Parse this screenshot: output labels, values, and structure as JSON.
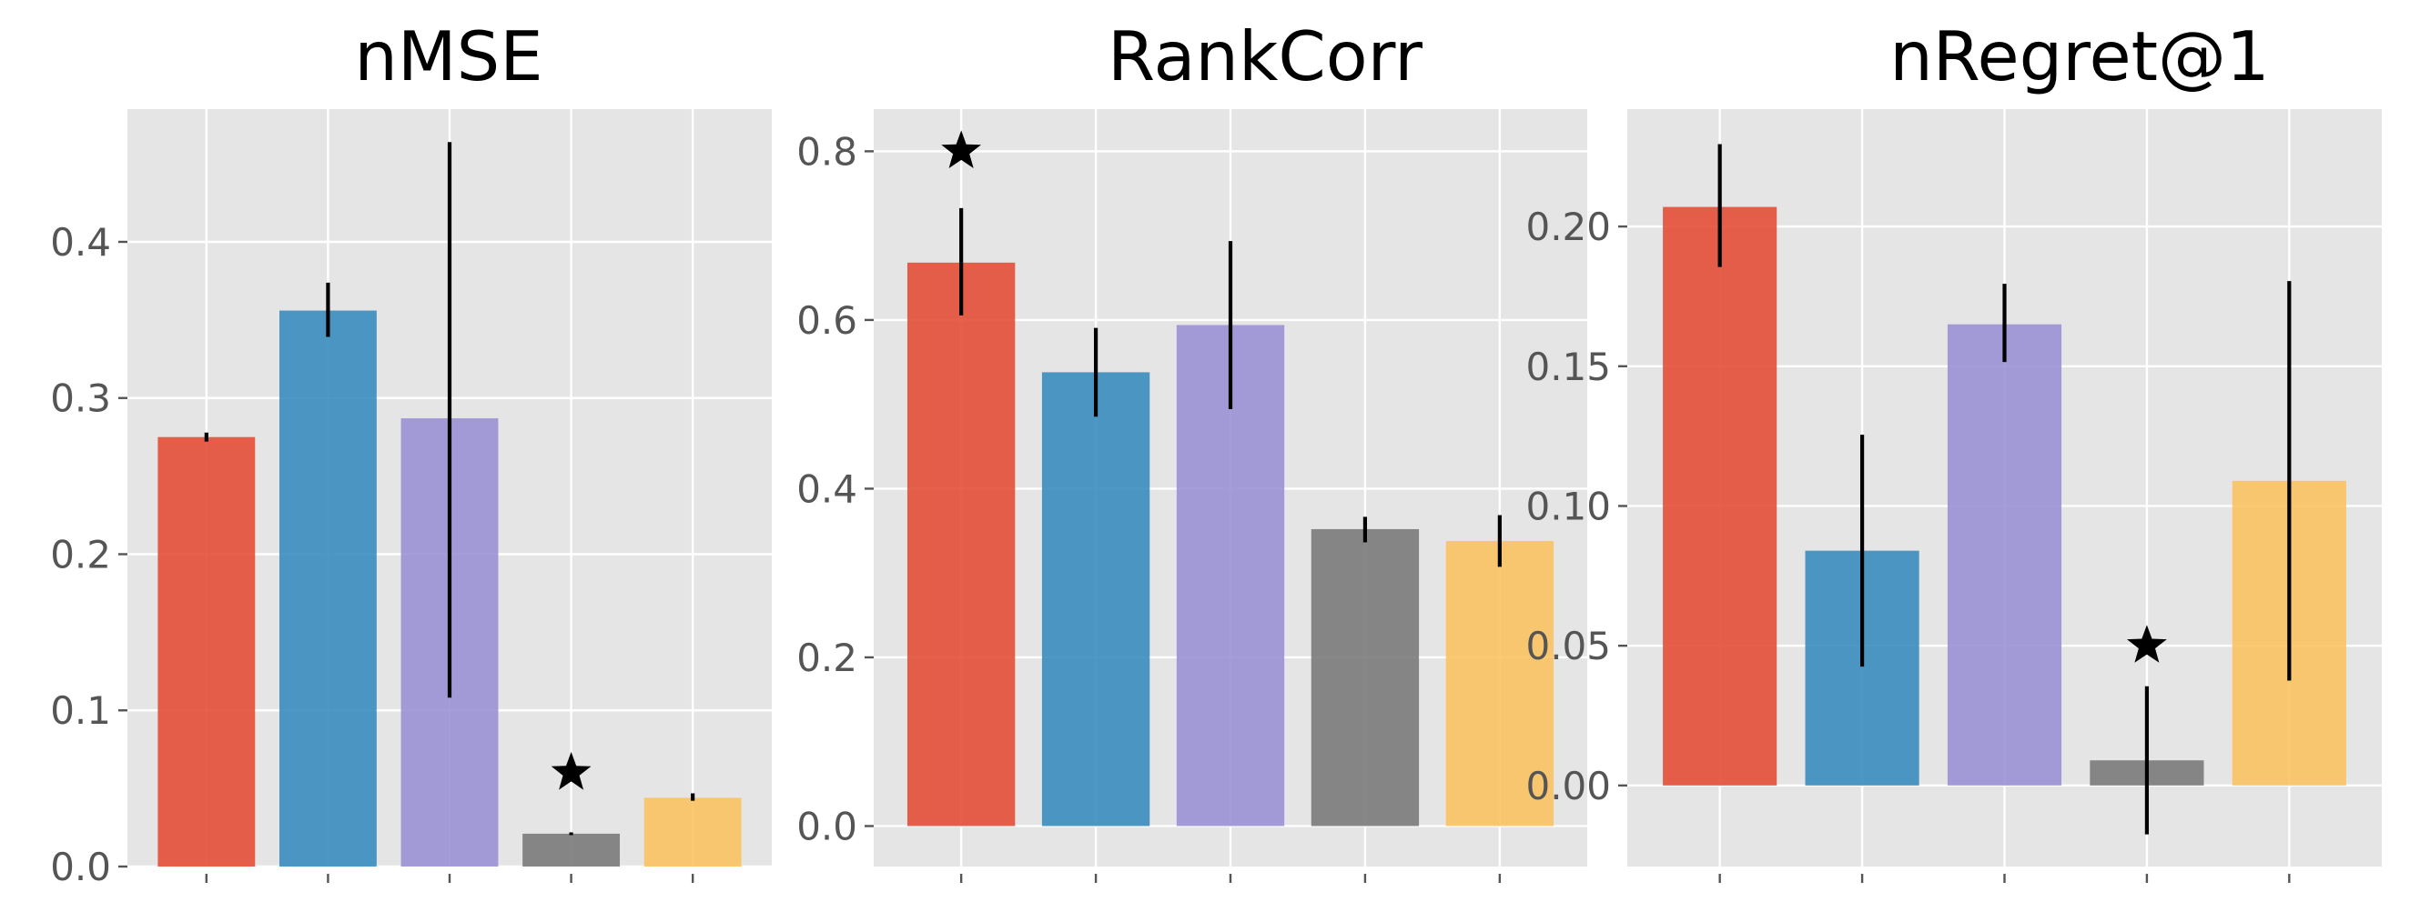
{
  "colors": {
    "background": "#e5e5e5",
    "grid": "#ffffff",
    "tick": "#555555",
    "errorbar": "#000000",
    "star": "#000000"
  },
  "chart_data": [
    {
      "type": "bar",
      "title": "nMSE",
      "ylim": [
        0.0,
        0.485
      ],
      "yticks": [
        0.0,
        0.1,
        0.2,
        0.3,
        0.4
      ],
      "ytick_labels": [
        "0.0",
        "0.1",
        "0.2",
        "0.3",
        "0.4"
      ],
      "grid": true,
      "bars": [
        {
          "value": 0.275,
          "err_low": 0.273,
          "err_high": 0.277,
          "color": "#e24a33"
        },
        {
          "value": 0.356,
          "err_low": 0.34,
          "err_high": 0.373,
          "color": "#348abd"
        },
        {
          "value": 0.287,
          "err_low": 0.109,
          "err_high": 0.463,
          "color": "#988ed5"
        },
        {
          "value": 0.021,
          "err_low": 0.021,
          "err_high": 0.021,
          "color": "#777777"
        },
        {
          "value": 0.044,
          "err_low": 0.043,
          "err_high": 0.046,
          "color": "#fbc15e"
        }
      ],
      "star": {
        "bar_index": 3,
        "y": 0.06
      }
    },
    {
      "type": "bar",
      "title": "RankCorr",
      "ylim": [
        -0.048,
        0.85
      ],
      "yticks": [
        0.0,
        0.2,
        0.4,
        0.6,
        0.8
      ],
      "ytick_labels": [
        "0.0",
        "0.2",
        "0.4",
        "0.6",
        "0.8"
      ],
      "grid": true,
      "bars": [
        {
          "value": 0.668,
          "err_low": 0.607,
          "err_high": 0.731,
          "color": "#e24a33"
        },
        {
          "value": 0.538,
          "err_low": 0.487,
          "err_high": 0.589,
          "color": "#348abd"
        },
        {
          "value": 0.594,
          "err_low": 0.496,
          "err_high": 0.692,
          "color": "#988ed5"
        },
        {
          "value": 0.352,
          "err_low": 0.338,
          "err_high": 0.365,
          "color": "#777777"
        },
        {
          "value": 0.338,
          "err_low": 0.309,
          "err_high": 0.367,
          "color": "#fbc15e"
        }
      ],
      "star": {
        "bar_index": 0,
        "y": 0.8
      }
    },
    {
      "type": "bar",
      "title": "nRegret@1",
      "ylim": [
        -0.029,
        0.242
      ],
      "yticks": [
        0.0,
        0.05,
        0.1,
        0.15,
        0.2
      ],
      "ytick_labels": [
        "0.00",
        "0.05",
        "0.10",
        "0.15",
        "0.20"
      ],
      "grid": true,
      "bars": [
        {
          "value": 0.207,
          "err_low": 0.186,
          "err_high": 0.229,
          "color": "#e24a33"
        },
        {
          "value": 0.084,
          "err_low": 0.043,
          "err_high": 0.125,
          "color": "#348abd"
        },
        {
          "value": 0.165,
          "err_low": 0.152,
          "err_high": 0.179,
          "color": "#988ed5"
        },
        {
          "value": 0.009,
          "err_low": -0.017,
          "err_high": 0.035,
          "color": "#777777"
        },
        {
          "value": 0.109,
          "err_low": 0.038,
          "err_high": 0.18,
          "color": "#fbc15e"
        }
      ],
      "star": {
        "bar_index": 3,
        "y": 0.05
      }
    }
  ]
}
